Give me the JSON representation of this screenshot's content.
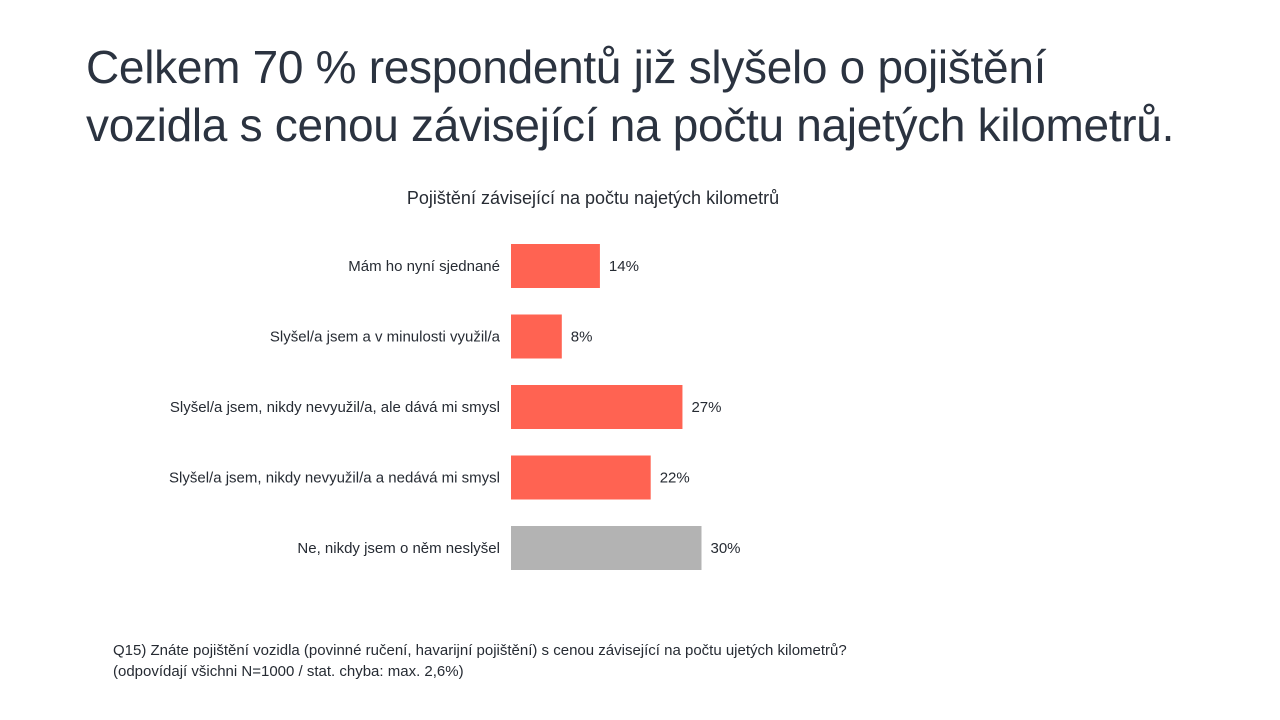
{
  "slide": {
    "title_line1": "Celkem 70 % respondentů již slyšelo o pojištění",
    "title_line2": "vozidla s cenou závisející na počtu najetých kilometrů."
  },
  "chart_data": {
    "type": "bar",
    "orientation": "horizontal",
    "title": "Pojištění závisející na počtu najetých kilometrů",
    "categories": [
      "Mám ho nyní sjednané",
      "Slyšel/a jsem a v minulosti využil/a",
      "Slyšel/a jsem, nikdy nevyužil/a, ale dává mi smysl",
      "Slyšel/a jsem, nikdy nevyužil/a a nedává mi smysl",
      "Ne, nikdy jsem o něm neslyšel"
    ],
    "values": [
      14,
      8,
      27,
      22,
      30
    ],
    "value_labels": [
      "14%",
      "8%",
      "27%",
      "22%",
      "30%"
    ],
    "colors": [
      "#ff6352",
      "#ff6352",
      "#ff6352",
      "#ff6352",
      "#b3b3b3"
    ],
    "xlim": [
      0,
      100
    ],
    "xlabel": "",
    "ylabel": "",
    "grid": false
  },
  "footnote": {
    "line1": "Q15) Znáte pojištění vozidla (povinné ručení, havarijní pojištění) s cenou závisející na počtu ujetých kilometrů?",
    "line2": "(odpovídají všichni N=1000 / stat. chyba: max. 2,6%)"
  }
}
